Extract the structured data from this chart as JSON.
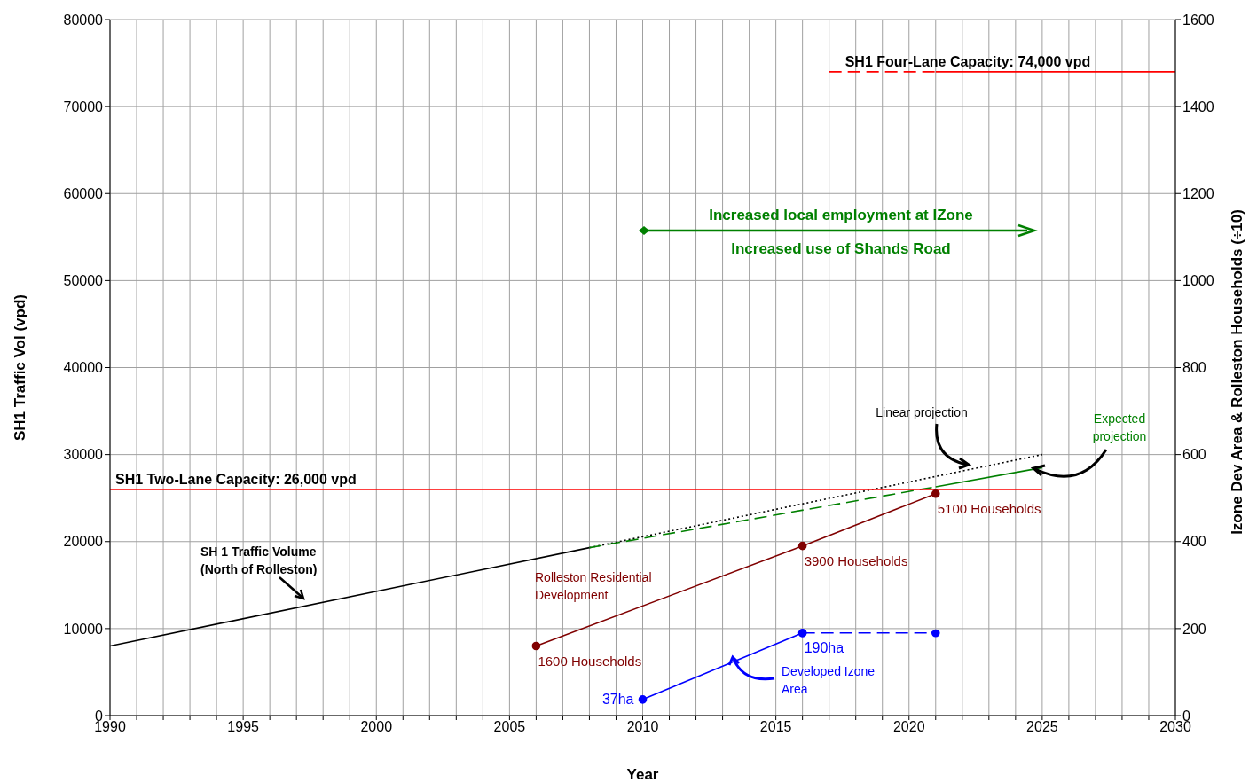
{
  "chart_data": {
    "type": "line",
    "xlabel": "Year",
    "ylabel": "SH1 Traffic Vol (vpd)",
    "y2label": "Izone Dev Area & Rolleston Households (÷10)",
    "xlim": [
      1990,
      2030
    ],
    "xticks": [
      1990,
      {
        "value": 1991,
        "label": null
      },
      {
        "value": 1992,
        "label": null
      },
      {
        "value": 1993,
        "label": null
      },
      {
        "value": 1994,
        "label": null
      },
      1995,
      {
        "value": 1996,
        "label": null
      },
      {
        "value": 1997,
        "label": null
      },
      {
        "value": 1998,
        "label": null
      },
      {
        "value": 1999,
        "label": null
      },
      2000,
      {
        "value": 2001,
        "label": null
      },
      {
        "value": 2002,
        "label": null
      },
      {
        "value": 2003,
        "label": null
      },
      {
        "value": 2004,
        "label": null
      },
      2005,
      {
        "value": 2006,
        "label": null
      },
      {
        "value": 2007,
        "label": null
      },
      {
        "value": 2008,
        "label": null
      },
      {
        "value": 2009,
        "label": null
      },
      2010,
      {
        "value": 2011,
        "label": null
      },
      {
        "value": 2012,
        "label": null
      },
      {
        "value": 2013,
        "label": null
      },
      {
        "value": 2014,
        "label": null
      },
      2015,
      {
        "value": 2016,
        "label": null
      },
      {
        "value": 2017,
        "label": null
      },
      {
        "value": 2018,
        "label": null
      },
      {
        "value": 2019,
        "label": null
      },
      2020,
      {
        "value": 2021,
        "label": null
      },
      {
        "value": 2022,
        "label": null
      },
      {
        "value": 2023,
        "label": null
      },
      {
        "value": 2024,
        "label": null
      },
      2025,
      {
        "value": 2026,
        "label": null
      },
      {
        "value": 2027,
        "label": null
      },
      {
        "value": 2028,
        "label": null
      },
      {
        "value": 2029,
        "label": null
      },
      2030
    ],
    "ylim": [
      0,
      80000
    ],
    "yticks": [
      0,
      10000,
      20000,
      30000,
      40000,
      50000,
      60000,
      70000,
      80000
    ],
    "y2lim": [
      0,
      1600
    ],
    "y2ticks": [
      0,
      200,
      400,
      600,
      800,
      1000,
      1200,
      1400,
      1600
    ],
    "grid": true,
    "series": [
      {
        "name": "SH 1 Traffic Volume (North of Rolleston)",
        "color": "#000000",
        "x": [
          1990,
          2008
        ],
        "values": [
          8000,
          19300
        ],
        "line_style": "solid",
        "marker": "none"
      },
      {
        "name": "Linear projection",
        "color": "#000000",
        "x": [
          2008,
          2025
        ],
        "values": [
          19300,
          30000
        ],
        "line_style": "dotted",
        "marker": "none"
      },
      {
        "color": "#008000",
        "x": [
          2008,
          2021
        ],
        "values": [
          19300,
          26300
        ],
        "line_style": "dashed",
        "marker": "none"
      },
      {
        "name": "Expected projection",
        "color": "#008000",
        "x": [
          2021,
          2025
        ],
        "values": [
          26300,
          28500
        ],
        "line_style": "solid",
        "marker": "none"
      },
      {
        "color": "#ff0000",
        "x": [
          1990,
          2025
        ],
        "values": [
          26000,
          26000
        ],
        "line_style": "solid",
        "marker": "none"
      },
      {
        "color": "#ff0000",
        "x": [
          2017,
          2021
        ],
        "values": [
          74000,
          74000
        ],
        "line_style": "dashed",
        "marker": "none"
      },
      {
        "color": "#ff0000",
        "x": [
          2021,
          2030
        ],
        "values": [
          74000,
          74000
        ],
        "line_style": "solid",
        "marker": "none"
      },
      {
        "name": "Rolleston Residential Development",
        "color": "#800000",
        "axis": "y2",
        "x": [
          2006,
          2016,
          2021
        ],
        "values": [
          160,
          390,
          510
        ],
        "line_style": "solid",
        "marker": "circle"
      },
      {
        "name": "Developed Izone Area",
        "color": "#0000ff",
        "axis": "y2",
        "x": [
          2010,
          2016
        ],
        "values": [
          37,
          190
        ],
        "value_labels": [
          "37ha",
          "190ha"
        ],
        "line_style": "solid",
        "marker": "circle"
      },
      {
        "color": "#0000ff",
        "axis": "y2",
        "x": [
          2016,
          2021
        ],
        "values": [
          190,
          190
        ],
        "line_style": "dashed",
        "marker": "circle"
      }
    ],
    "annotations": [
      "Increased local employment at IZone",
      "Increased use of Shands Road",
      {
        "text": "SH1 Two-Lane Capacity: 26,000 vpd",
        "x": 1990,
        "y": 26000
      },
      {
        "text": "SH1 Four-Lane Capacity: 74,000 vpd",
        "x": 2017,
        "y": 74000
      },
      "1600 Households",
      "3900 Households",
      "5100 Households"
    ]
  }
}
